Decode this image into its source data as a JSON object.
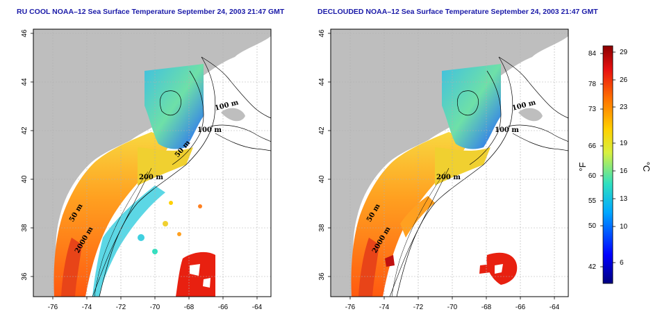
{
  "titles": {
    "left": "RU COOL NOAA–12 Sea Surface Temperature September 24, 2003 21:47 GMT",
    "right": "DECLOUDED NOAA–12 Sea Surface Temperature September 24, 2003 21:47 GMT"
  },
  "axes": {
    "lon_ticks": [
      "-76",
      "-74",
      "-72",
      "-70",
      "-68",
      "-66",
      "-64"
    ],
    "lat_ticks": [
      "46",
      "44",
      "42",
      "40",
      "38",
      "36"
    ]
  },
  "contour_labels": {
    "left": [
      "100 m",
      "100 m",
      "50 m",
      "200 m",
      "50 m",
      "2000 m"
    ],
    "right": [
      "100 m",
      "100 m",
      "200 m",
      "50 m",
      "2000 m"
    ]
  },
  "colorbar": {
    "fahrenheit_ticks": [
      "84",
      "78",
      "73",
      "66",
      "60",
      "55",
      "50",
      "42"
    ],
    "celsius_ticks": [
      "29",
      "26",
      "23",
      "19",
      "16",
      "13",
      "10",
      "6"
    ],
    "fahrenheit_unit": "°F",
    "celsius_unit": "°C"
  },
  "colors": {
    "land": "#bebebe",
    "cloud_or_nodata": "#ffffff",
    "grid": "#b0b0b0",
    "title": "#1a1aa8"
  }
}
